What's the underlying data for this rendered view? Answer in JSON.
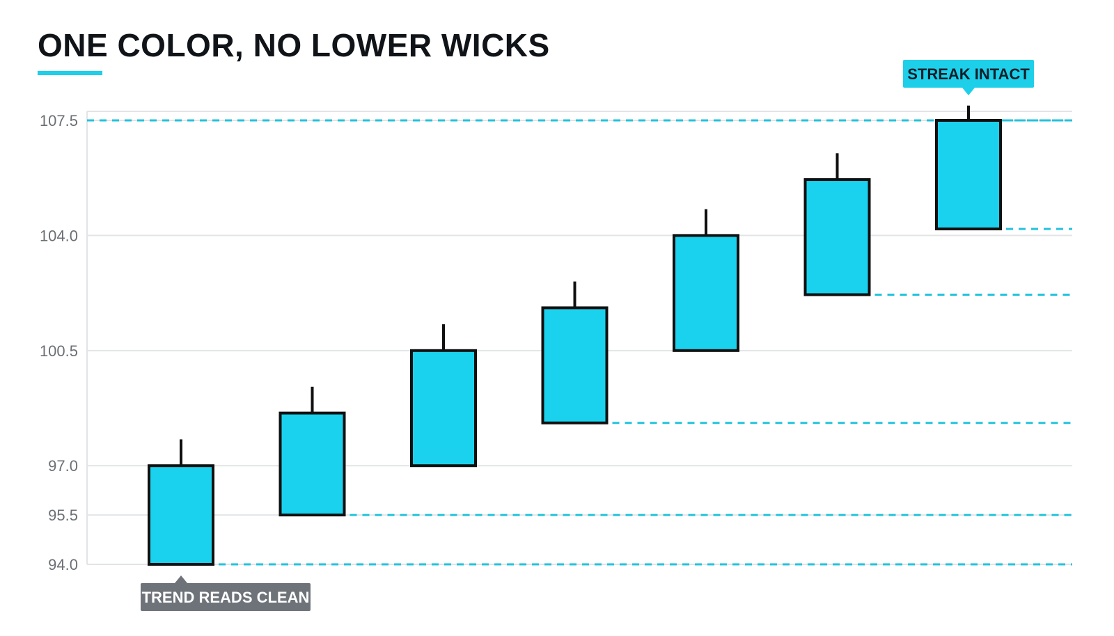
{
  "chart_data": {
    "type": "candlestick",
    "title": "ONE COLOR, NO LOWER WICKS",
    "xlabel": "",
    "ylabel": "",
    "ylim": [
      94.0,
      107.5
    ],
    "y_ticks": [
      "107.5",
      "104.0",
      "100.5",
      "97.0",
      "95.5",
      "94.0"
    ],
    "grid": true,
    "candle_color": "#1ad2ee",
    "outline_color": "#101010",
    "candles": [
      {
        "open": 94.0,
        "close": 97.0,
        "high": 97.8
      },
      {
        "open": 95.5,
        "close": 98.6,
        "high": 99.4
      },
      {
        "open": 97.0,
        "close": 100.5,
        "high": 101.3
      },
      {
        "open": 98.3,
        "close": 101.8,
        "high": 102.6
      },
      {
        "open": 100.5,
        "close": 104.0,
        "high": 104.8
      },
      {
        "open": 102.2,
        "close": 105.7,
        "high": 106.5
      },
      {
        "open": 104.2,
        "close": 107.5,
        "high": 107.95
      }
    ],
    "support_levels": [
      {
        "from_candle": 1,
        "value": 94.0
      },
      {
        "from_candle": 2,
        "value": 95.5
      },
      {
        "from_candle": 4,
        "value": 98.3
      },
      {
        "from_candle": 6,
        "value": 102.2
      },
      {
        "from_candle": 7,
        "value": 104.2
      },
      {
        "from_candle": 7,
        "value": 107.5
      }
    ],
    "annotations": [
      {
        "text": "STREAK INTACT",
        "candle": 7,
        "anchor": "top"
      },
      {
        "text": "TREND READS CLEAN",
        "candle": 1,
        "anchor": "bottom"
      }
    ],
    "colors": {
      "accent": "#1ecfe9",
      "dashed_level": "#22c3dc",
      "grid": "#e2e4e6",
      "callout_top_bg": "#1ecfe9",
      "callout_top_text": "#0c1e28",
      "callout_bottom_bg": "#6e737a",
      "callout_bottom_text": "#ffffff"
    }
  }
}
